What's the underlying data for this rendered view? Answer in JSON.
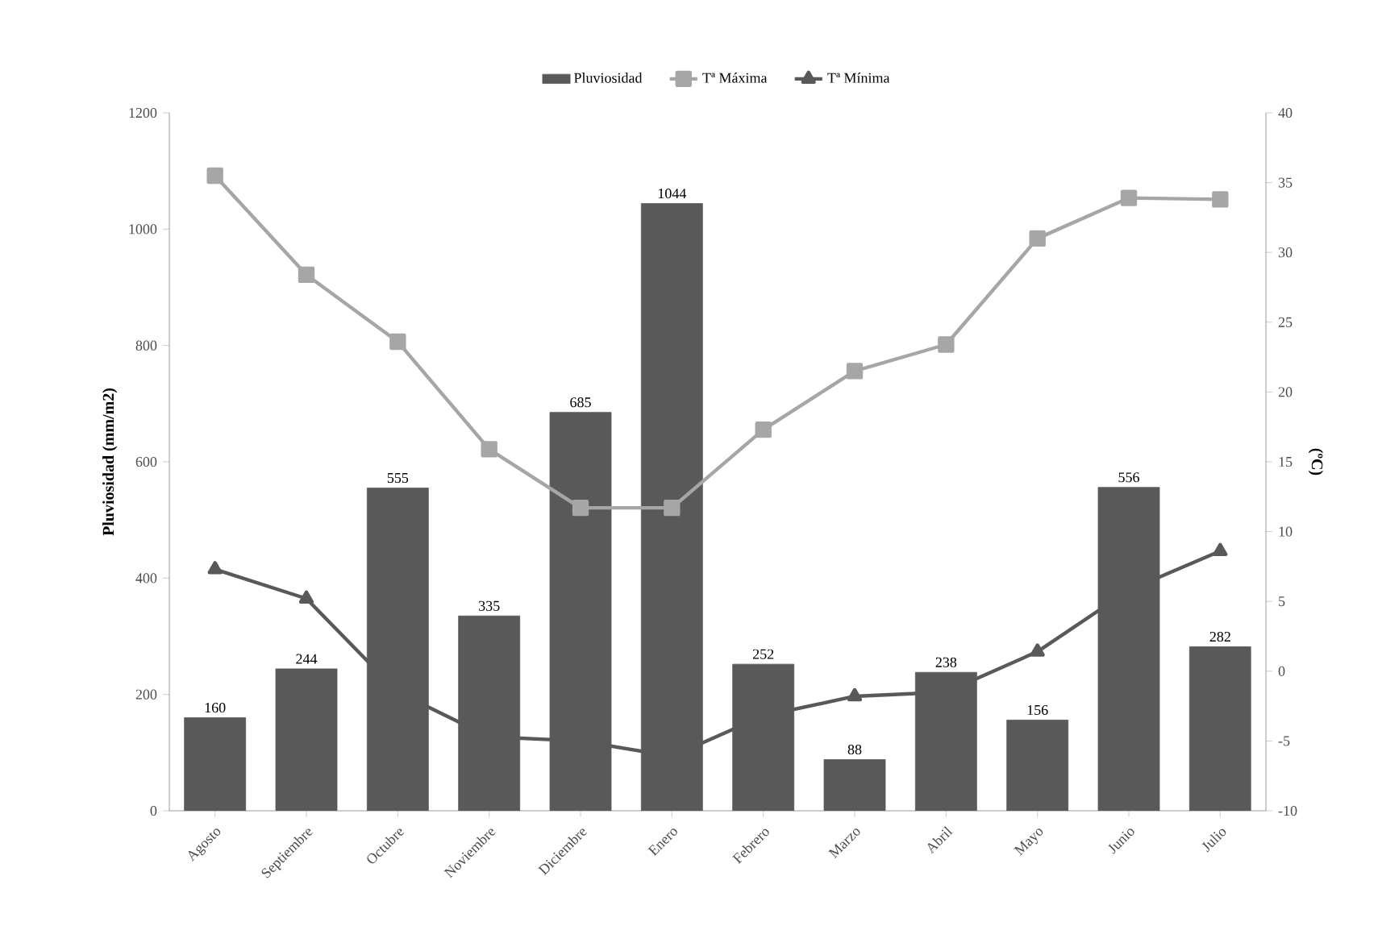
{
  "chart_data": {
    "type": "bar",
    "categories": [
      "Agosto",
      "Septiembre",
      "Octubre",
      "Noviembre",
      "Diciembre",
      "Enero",
      "Febrero",
      "Marzo",
      "Abril",
      "Mayo",
      "Junio",
      "Julio"
    ],
    "ylabel": "Pluviosidad (mm/m2)",
    "y2label": "(ºC)",
    "ylim": [
      0,
      1200
    ],
    "yticks": [
      0,
      200,
      400,
      600,
      800,
      1000,
      1200
    ],
    "y2lim": [
      -10,
      40
    ],
    "y2ticks": [
      -10,
      -5,
      0,
      5,
      10,
      15,
      20,
      25,
      30,
      35,
      40
    ],
    "legend": "top",
    "grid": false,
    "series": [
      {
        "name": "Pluviosidad",
        "color": "#595959",
        "values": [
          160,
          244,
          555,
          335,
          685,
          1044,
          252,
          88,
          238,
          156,
          556,
          282
        ],
        "value_labels": [
          "160",
          "244",
          "555",
          "335",
          "685",
          "1044",
          "252",
          "88",
          "238",
          "156",
          "556",
          "282"
        ]
      },
      {
        "name": "Tª Máxima",
        "type": "line",
        "axis": "y2",
        "color": "#a6a6a6",
        "marker": "square",
        "values": [
          35.5,
          28.4,
          23.6,
          15.9,
          11.7,
          11.7,
          17.3,
          21.5,
          23.4,
          31.0,
          33.9,
          33.8
        ]
      },
      {
        "name": "Tª Mínima",
        "type": "line",
        "axis": "y2",
        "color": "#595959",
        "marker": "triangle",
        "values": [
          7.3,
          5.2,
          -1.5,
          -4.7,
          -5.0,
          -6.1,
          -3.2,
          -1.8,
          -1.5,
          1.4,
          5.8,
          8.6
        ]
      }
    ]
  }
}
